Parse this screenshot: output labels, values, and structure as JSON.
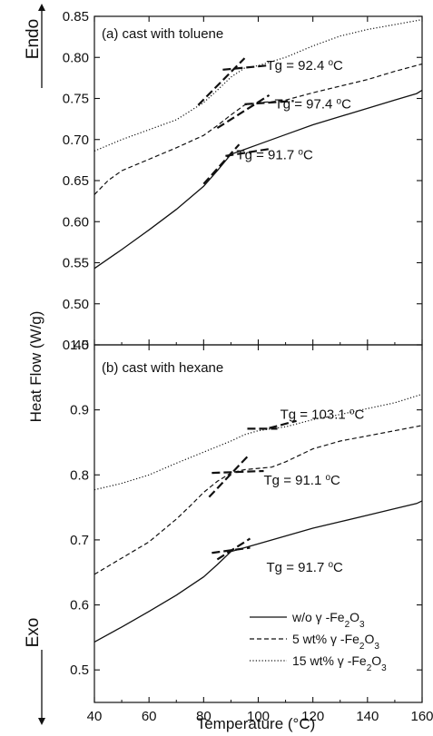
{
  "figure": {
    "ylabel": "Heat Flow (W/g)",
    "xlabel": "Temperature (°C)",
    "endo_label": "Endo",
    "exo_label": "Exo"
  },
  "chart_data": [
    {
      "type": "line",
      "panel": "(a) cast with toluene",
      "xlim": [
        40,
        160
      ],
      "ylim": [
        0.45,
        0.85
      ],
      "xticks": [
        40,
        60,
        80,
        100,
        120,
        140,
        160
      ],
      "yticks": [
        0.45,
        0.5,
        0.55,
        0.6,
        0.65,
        0.7,
        0.75,
        0.8,
        0.85
      ],
      "ytick_labels": [
        "0.45",
        "0.50",
        "0.55",
        "0.60",
        "0.65",
        "0.70",
        "0.75",
        "0.80",
        "0.85"
      ],
      "series": [
        {
          "name": "w/o γ-Fe2O3",
          "style": "solid",
          "x": [
            40,
            50,
            60,
            70,
            80,
            85,
            90,
            95,
            100,
            110,
            120,
            130,
            140,
            150,
            158,
            160
          ],
          "y": [
            0.543,
            0.566,
            0.59,
            0.615,
            0.643,
            0.662,
            0.682,
            0.688,
            0.694,
            0.706,
            0.718,
            0.728,
            0.738,
            0.748,
            0.756,
            0.76
          ]
        },
        {
          "name": "5 wt% γ-Fe2O3",
          "style": "dashed",
          "x": [
            40,
            45,
            50,
            60,
            70,
            80,
            85,
            90,
            95,
            100,
            105,
            110,
            120,
            130,
            140,
            150,
            160
          ],
          "y": [
            0.633,
            0.65,
            0.662,
            0.676,
            0.69,
            0.705,
            0.717,
            0.73,
            0.742,
            0.745,
            0.746,
            0.748,
            0.757,
            0.765,
            0.773,
            0.783,
            0.792
          ]
        },
        {
          "name": "15 wt% γ-Fe2O3",
          "style": "dotted",
          "x": [
            40,
            50,
            60,
            70,
            80,
            85,
            90,
            95,
            100,
            110,
            120,
            130,
            140,
            150,
            160
          ],
          "y": [
            0.686,
            0.7,
            0.712,
            0.724,
            0.745,
            0.76,
            0.776,
            0.787,
            0.79,
            0.8,
            0.814,
            0.826,
            0.834,
            0.84,
            0.846
          ]
        }
      ],
      "tangent_lines": [
        {
          "x": [
            78,
            95
          ],
          "y": [
            0.742,
            0.799
          ]
        },
        {
          "x": [
            87,
            103
          ],
          "y": [
            0.785,
            0.79
          ]
        },
        {
          "x": [
            85,
            104
          ],
          "y": [
            0.714,
            0.754
          ]
        },
        {
          "x": [
            95,
            113
          ],
          "y": [
            0.743,
            0.747
          ]
        },
        {
          "x": [
            80,
            93
          ],
          "y": [
            0.646,
            0.694
          ]
        },
        {
          "x": [
            88,
            105
          ],
          "y": [
            0.68,
            0.689
          ]
        }
      ],
      "annotations": [
        {
          "text": "Tg = 92.4 °C",
          "x": 103,
          "y": 0.785
        },
        {
          "text": "Tg = 97.4 °C",
          "x": 106,
          "y": 0.738
        },
        {
          "text": "Tg = 91.7 °C",
          "x": 92,
          "y": 0.676
        }
      ]
    },
    {
      "type": "line",
      "panel": "(b) cast with hexane",
      "xlim": [
        40,
        160
      ],
      "ylim": [
        0.45,
        1.0
      ],
      "xticks": [
        40,
        60,
        80,
        100,
        120,
        140,
        160
      ],
      "xtick_labels": [
        "40",
        "60",
        "80",
        "100",
        "120",
        "140",
        "160"
      ],
      "yticks": [
        0.5,
        0.6,
        0.7,
        0.8,
        0.9,
        1.0
      ],
      "ytick_labels": [
        "0.5",
        "0.6",
        "0.7",
        "0.8",
        "0.9",
        "1.0"
      ],
      "series": [
        {
          "name": "w/o γ-Fe2O3",
          "style": "solid",
          "x": [
            40,
            50,
            60,
            70,
            80,
            85,
            90,
            95,
            100,
            110,
            120,
            130,
            140,
            150,
            158,
            160
          ],
          "y": [
            0.543,
            0.566,
            0.59,
            0.615,
            0.643,
            0.662,
            0.682,
            0.688,
            0.694,
            0.706,
            0.718,
            0.728,
            0.738,
            0.748,
            0.756,
            0.76
          ]
        },
        {
          "name": "5 wt% γ-Fe2O3",
          "style": "dashed",
          "x": [
            40,
            50,
            60,
            70,
            75,
            80,
            85,
            90,
            95,
            100,
            105,
            110,
            120,
            130,
            140,
            150,
            160
          ],
          "y": [
            0.647,
            0.672,
            0.697,
            0.732,
            0.752,
            0.773,
            0.79,
            0.803,
            0.808,
            0.81,
            0.812,
            0.82,
            0.84,
            0.852,
            0.86,
            0.868,
            0.876
          ]
        },
        {
          "name": "15 wt% γ-Fe2O3",
          "style": "dotted",
          "x": [
            40,
            50,
            60,
            70,
            80,
            90,
            95,
            100,
            105,
            110,
            120,
            130,
            140,
            150,
            160
          ],
          "y": [
            0.777,
            0.787,
            0.8,
            0.818,
            0.835,
            0.852,
            0.862,
            0.868,
            0.871,
            0.874,
            0.885,
            0.893,
            0.902,
            0.911,
            0.924
          ]
        }
      ],
      "tangent_lines": [
        {
          "x": [
            82,
            96
          ],
          "y": [
            0.766,
            0.828
          ]
        },
        {
          "x": [
            83,
            102
          ],
          "y": [
            0.803,
            0.806
          ]
        },
        {
          "x": [
            96,
            107
          ],
          "y": [
            0.871,
            0.871
          ]
        },
        {
          "x": [
            104,
            114
          ],
          "y": [
            0.872,
            0.883
          ]
        },
        {
          "x": [
            85,
            97
          ],
          "y": [
            0.67,
            0.702
          ]
        },
        {
          "x": [
            83,
            97
          ],
          "y": [
            0.68,
            0.688
          ]
        }
      ],
      "annotations": [
        {
          "text": "Tg = 103.1 °C",
          "x": 108,
          "y": 0.886
        },
        {
          "text": "Tg = 91.1 °C",
          "x": 102,
          "y": 0.785
        },
        {
          "text": "Tg = 91.7 °C",
          "x": 103,
          "y": 0.651
        }
      ],
      "legend": {
        "placement": "bottom-right",
        "entries": [
          {
            "label": "w/o γ -Fe2O3",
            "style": "solid"
          },
          {
            "label": "5 wt% γ -Fe2O3",
            "style": "dashed"
          },
          {
            "label": "15 wt% γ -Fe2O3",
            "style": "dotted"
          }
        ]
      }
    }
  ]
}
